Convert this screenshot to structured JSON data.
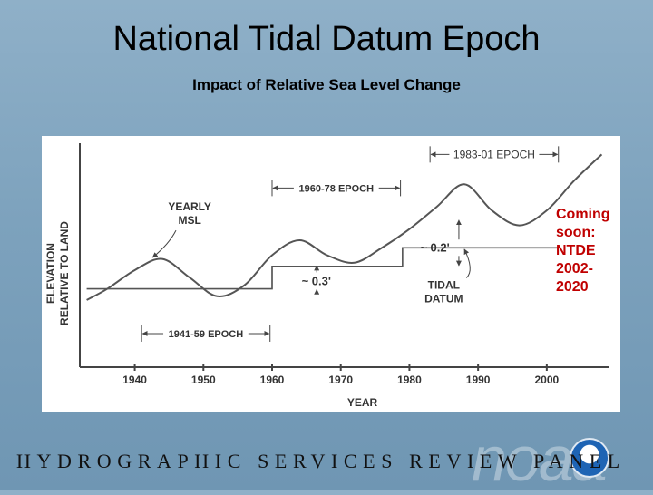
{
  "slide": {
    "title": "National Tidal Datum Epoch",
    "subtitle": "Impact of Relative Sea Level Change",
    "note_lines": [
      "Coming",
      "soon:",
      "NTDE",
      "2002-",
      "2020"
    ],
    "footer": "HYDROGRAPHIC SERVICES REVIEW PANEL",
    "logo_wordmark": "noaa",
    "logo_seal_text": "NOAA"
  },
  "colors": {
    "note": "#c00000",
    "curve": "#555555",
    "axis": "#444444"
  },
  "chart_data": {
    "type": "line",
    "xlabel": "YEAR",
    "ylabel_lines": [
      "ELEVATION",
      "RELATIVE TO LAND"
    ],
    "xlim": [
      1932,
      2009
    ],
    "ylim": [
      -1.0,
      2.0
    ],
    "xticks": [
      1940,
      1950,
      1960,
      1970,
      1980,
      1990,
      2000
    ],
    "grid": false,
    "series": [
      {
        "label": "YEARLY MSL",
        "x": [
          1933,
          1936,
          1940,
          1944,
          1948,
          1952,
          1956,
          1960,
          1964,
          1968,
          1972,
          1976,
          1980,
          1984,
          1988,
          1992,
          1996,
          2000,
          2004,
          2008
        ],
        "y": [
          -0.1,
          0.05,
          0.3,
          0.45,
          0.2,
          -0.05,
          0.1,
          0.5,
          0.7,
          0.5,
          0.4,
          0.6,
          0.85,
          1.15,
          1.45,
          1.1,
          0.9,
          1.1,
          1.5,
          1.85
        ]
      },
      {
        "label": "TIDAL DATUM",
        "segments": [
          {
            "epoch": "1941-59 EPOCH",
            "x": [
              1933,
              1960
            ],
            "y": 0.05
          },
          {
            "epoch": "1960-78 EPOCH",
            "x": [
              1960,
              1979
            ],
            "y": 0.35
          },
          {
            "epoch": "1983-01 EPOCH",
            "x": [
              1979,
              2002
            ],
            "y": 0.6
          }
        ]
      }
    ],
    "epochs": [
      {
        "label": "1941-59 EPOCH",
        "x": [
          1941,
          1959
        ]
      },
      {
        "label": "1960-78 EPOCH",
        "x": [
          1960,
          1978
        ]
      },
      {
        "label": "1983-01 EPOCH",
        "x": [
          1983,
          2001
        ]
      }
    ],
    "annotations": [
      {
        "text": "YEARLY",
        "text2": "MSL",
        "x": 1948,
        "y": 1.1
      },
      {
        "text": "~ 0.3'",
        "x": 1967.5,
        "y": 0.15
      },
      {
        "text": "~ 0.2'",
        "x": 1984.5,
        "y": 0.6
      },
      {
        "text": "TIDAL",
        "text2": "DATUM",
        "x": 1985,
        "y": 0.05
      }
    ]
  }
}
